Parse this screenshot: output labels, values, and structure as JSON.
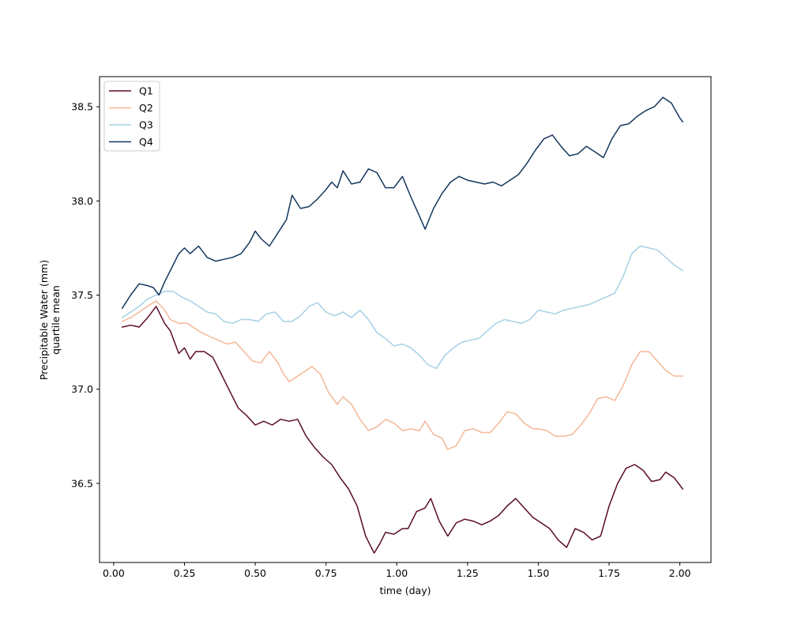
{
  "chart_data": {
    "type": "line",
    "title": "",
    "xlabel": "time (day)",
    "ylabel_lines": [
      "Precipitable Water (mm)",
      "quartile mean"
    ],
    "xlim": [
      -0.05,
      2.11
    ],
    "ylim": [
      36.08,
      38.66
    ],
    "xticks": [
      0.0,
      0.25,
      0.5,
      0.75,
      1.0,
      1.25,
      1.5,
      1.75,
      2.0
    ],
    "xtick_labels": [
      "0.00",
      "0.25",
      "0.50",
      "0.75",
      "1.00",
      "1.25",
      "1.50",
      "1.75",
      "2.00"
    ],
    "yticks": [
      36.5,
      37.0,
      37.5,
      38.0,
      38.5
    ],
    "ytick_labels": [
      "36.5",
      "37.0",
      "37.5",
      "38.0",
      "38.5"
    ],
    "grid": false,
    "legend_position": "top-left",
    "series": [
      {
        "name": "Q1",
        "color": "#5a0a2a",
        "points": [
          [
            0.03,
            37.33
          ],
          [
            0.06,
            37.34
          ],
          [
            0.09,
            37.33
          ],
          [
            0.12,
            37.38
          ],
          [
            0.15,
            37.44
          ],
          [
            0.18,
            37.35
          ],
          [
            0.2,
            37.31
          ],
          [
            0.23,
            37.19
          ],
          [
            0.25,
            37.22
          ],
          [
            0.27,
            37.16
          ],
          [
            0.29,
            37.2
          ],
          [
            0.32,
            37.2
          ],
          [
            0.35,
            37.17
          ],
          [
            0.38,
            37.08
          ],
          [
            0.41,
            36.99
          ],
          [
            0.44,
            36.9
          ],
          [
            0.47,
            36.86
          ],
          [
            0.5,
            36.81
          ],
          [
            0.53,
            36.83
          ],
          [
            0.56,
            36.81
          ],
          [
            0.59,
            36.84
          ],
          [
            0.62,
            36.83
          ],
          [
            0.65,
            36.84
          ],
          [
            0.68,
            36.75
          ],
          [
            0.71,
            36.69
          ],
          [
            0.74,
            36.64
          ],
          [
            0.77,
            36.6
          ],
          [
            0.8,
            36.53
          ],
          [
            0.83,
            36.47
          ],
          [
            0.86,
            36.38
          ],
          [
            0.89,
            36.22
          ],
          [
            0.92,
            36.13
          ],
          [
            0.94,
            36.18
          ],
          [
            0.96,
            36.24
          ],
          [
            0.99,
            36.23
          ],
          [
            1.02,
            36.26
          ],
          [
            1.04,
            36.26
          ],
          [
            1.07,
            36.35
          ],
          [
            1.1,
            36.37
          ],
          [
            1.12,
            36.42
          ],
          [
            1.15,
            36.3
          ],
          [
            1.18,
            36.22
          ],
          [
            1.21,
            36.29
          ],
          [
            1.24,
            36.31
          ],
          [
            1.27,
            36.3
          ],
          [
            1.3,
            36.28
          ],
          [
            1.33,
            36.3
          ],
          [
            1.36,
            36.33
          ],
          [
            1.39,
            36.38
          ],
          [
            1.42,
            36.42
          ],
          [
            1.45,
            36.37
          ],
          [
            1.48,
            36.32
          ],
          [
            1.51,
            36.29
          ],
          [
            1.54,
            36.26
          ],
          [
            1.57,
            36.2
          ],
          [
            1.6,
            36.16
          ],
          [
            1.63,
            36.26
          ],
          [
            1.66,
            36.24
          ],
          [
            1.69,
            36.2
          ],
          [
            1.72,
            36.22
          ],
          [
            1.75,
            36.38
          ],
          [
            1.78,
            36.5
          ],
          [
            1.81,
            36.58
          ],
          [
            1.84,
            36.6
          ],
          [
            1.87,
            36.57
          ],
          [
            1.9,
            36.51
          ],
          [
            1.93,
            36.52
          ],
          [
            1.95,
            36.56
          ],
          [
            1.98,
            36.53
          ],
          [
            2.01,
            36.47
          ]
        ]
      },
      {
        "name": "Q2",
        "color": "#f4b795",
        "points": [
          [
            0.03,
            37.36
          ],
          [
            0.06,
            37.38
          ],
          [
            0.09,
            37.41
          ],
          [
            0.12,
            37.44
          ],
          [
            0.15,
            37.47
          ],
          [
            0.18,
            37.42
          ],
          [
            0.2,
            37.37
          ],
          [
            0.23,
            37.35
          ],
          [
            0.26,
            37.35
          ],
          [
            0.28,
            37.33
          ],
          [
            0.31,
            37.3
          ],
          [
            0.34,
            37.28
          ],
          [
            0.37,
            37.26
          ],
          [
            0.4,
            37.24
          ],
          [
            0.43,
            37.25
          ],
          [
            0.46,
            37.2
          ],
          [
            0.49,
            37.15
          ],
          [
            0.52,
            37.14
          ],
          [
            0.55,
            37.2
          ],
          [
            0.58,
            37.14
          ],
          [
            0.6,
            37.08
          ],
          [
            0.62,
            37.04
          ],
          [
            0.65,
            37.07
          ],
          [
            0.68,
            37.1
          ],
          [
            0.7,
            37.12
          ],
          [
            0.73,
            37.08
          ],
          [
            0.76,
            36.98
          ],
          [
            0.79,
            36.92
          ],
          [
            0.81,
            36.96
          ],
          [
            0.84,
            36.92
          ],
          [
            0.87,
            36.84
          ],
          [
            0.9,
            36.78
          ],
          [
            0.93,
            36.8
          ],
          [
            0.96,
            36.84
          ],
          [
            0.99,
            36.82
          ],
          [
            1.02,
            36.78
          ],
          [
            1.05,
            36.79
          ],
          [
            1.08,
            36.78
          ],
          [
            1.1,
            36.83
          ],
          [
            1.13,
            36.76
          ],
          [
            1.16,
            36.74
          ],
          [
            1.18,
            36.68
          ],
          [
            1.21,
            36.7
          ],
          [
            1.24,
            36.78
          ],
          [
            1.27,
            36.79
          ],
          [
            1.3,
            36.77
          ],
          [
            1.33,
            36.77
          ],
          [
            1.36,
            36.82
          ],
          [
            1.39,
            36.88
          ],
          [
            1.42,
            36.87
          ],
          [
            1.45,
            36.82
          ],
          [
            1.48,
            36.79
          ],
          [
            1.5,
            36.79
          ],
          [
            1.53,
            36.78
          ],
          [
            1.56,
            36.75
          ],
          [
            1.59,
            36.75
          ],
          [
            1.62,
            36.76
          ],
          [
            1.65,
            36.81
          ],
          [
            1.68,
            36.87
          ],
          [
            1.71,
            36.95
          ],
          [
            1.74,
            36.96
          ],
          [
            1.77,
            36.94
          ],
          [
            1.8,
            37.02
          ],
          [
            1.83,
            37.13
          ],
          [
            1.86,
            37.2
          ],
          [
            1.89,
            37.2
          ],
          [
            1.92,
            37.15
          ],
          [
            1.95,
            37.1
          ],
          [
            1.98,
            37.07
          ],
          [
            2.01,
            37.07
          ]
        ]
      },
      {
        "name": "Q3",
        "color": "#a6d0e4",
        "points": [
          [
            0.03,
            37.38
          ],
          [
            0.06,
            37.41
          ],
          [
            0.09,
            37.44
          ],
          [
            0.12,
            37.48
          ],
          [
            0.15,
            37.5
          ],
          [
            0.18,
            37.52
          ],
          [
            0.21,
            37.52
          ],
          [
            0.24,
            37.49
          ],
          [
            0.27,
            37.47
          ],
          [
            0.3,
            37.44
          ],
          [
            0.33,
            37.41
          ],
          [
            0.36,
            37.4
          ],
          [
            0.39,
            37.36
          ],
          [
            0.42,
            37.35
          ],
          [
            0.45,
            37.37
          ],
          [
            0.48,
            37.37
          ],
          [
            0.51,
            37.36
          ],
          [
            0.54,
            37.4
          ],
          [
            0.57,
            37.41
          ],
          [
            0.6,
            37.36
          ],
          [
            0.63,
            37.36
          ],
          [
            0.66,
            37.39
          ],
          [
            0.69,
            37.44
          ],
          [
            0.72,
            37.46
          ],
          [
            0.75,
            37.41
          ],
          [
            0.78,
            37.39
          ],
          [
            0.81,
            37.41
          ],
          [
            0.84,
            37.38
          ],
          [
            0.87,
            37.42
          ],
          [
            0.9,
            37.37
          ],
          [
            0.93,
            37.3
          ],
          [
            0.96,
            37.27
          ],
          [
            0.99,
            37.23
          ],
          [
            1.02,
            37.24
          ],
          [
            1.05,
            37.22
          ],
          [
            1.08,
            37.18
          ],
          [
            1.11,
            37.13
          ],
          [
            1.14,
            37.11
          ],
          [
            1.17,
            37.18
          ],
          [
            1.2,
            37.22
          ],
          [
            1.23,
            37.25
          ],
          [
            1.26,
            37.26
          ],
          [
            1.29,
            37.27
          ],
          [
            1.32,
            37.31
          ],
          [
            1.35,
            37.35
          ],
          [
            1.38,
            37.37
          ],
          [
            1.41,
            37.36
          ],
          [
            1.44,
            37.35
          ],
          [
            1.47,
            37.37
          ],
          [
            1.5,
            37.42
          ],
          [
            1.53,
            37.41
          ],
          [
            1.56,
            37.4
          ],
          [
            1.59,
            37.42
          ],
          [
            1.62,
            37.43
          ],
          [
            1.65,
            37.44
          ],
          [
            1.68,
            37.45
          ],
          [
            1.71,
            37.47
          ],
          [
            1.74,
            37.49
          ],
          [
            1.77,
            37.51
          ],
          [
            1.8,
            37.6
          ],
          [
            1.83,
            37.72
          ],
          [
            1.86,
            37.76
          ],
          [
            1.89,
            37.75
          ],
          [
            1.92,
            37.74
          ],
          [
            1.95,
            37.7
          ],
          [
            1.98,
            37.66
          ],
          [
            2.01,
            37.63
          ]
        ]
      },
      {
        "name": "Q4",
        "color": "#14365e",
        "points": [
          [
            0.03,
            37.43
          ],
          [
            0.06,
            37.5
          ],
          [
            0.09,
            37.56
          ],
          [
            0.12,
            37.55
          ],
          [
            0.14,
            37.54
          ],
          [
            0.16,
            37.5
          ],
          [
            0.18,
            37.57
          ],
          [
            0.2,
            37.63
          ],
          [
            0.23,
            37.72
          ],
          [
            0.25,
            37.75
          ],
          [
            0.27,
            37.72
          ],
          [
            0.3,
            37.76
          ],
          [
            0.33,
            37.7
          ],
          [
            0.36,
            37.68
          ],
          [
            0.39,
            37.69
          ],
          [
            0.42,
            37.7
          ],
          [
            0.45,
            37.72
          ],
          [
            0.48,
            37.78
          ],
          [
            0.5,
            37.84
          ],
          [
            0.52,
            37.8
          ],
          [
            0.55,
            37.76
          ],
          [
            0.58,
            37.83
          ],
          [
            0.61,
            37.9
          ],
          [
            0.63,
            38.03
          ],
          [
            0.66,
            37.96
          ],
          [
            0.69,
            37.97
          ],
          [
            0.72,
            38.01
          ],
          [
            0.75,
            38.06
          ],
          [
            0.77,
            38.1
          ],
          [
            0.79,
            38.07
          ],
          [
            0.81,
            38.16
          ],
          [
            0.84,
            38.09
          ],
          [
            0.87,
            38.1
          ],
          [
            0.9,
            38.17
          ],
          [
            0.93,
            38.15
          ],
          [
            0.96,
            38.07
          ],
          [
            0.99,
            38.07
          ],
          [
            1.02,
            38.13
          ],
          [
            1.05,
            38.02
          ],
          [
            1.08,
            37.92
          ],
          [
            1.1,
            37.85
          ],
          [
            1.13,
            37.96
          ],
          [
            1.16,
            38.04
          ],
          [
            1.19,
            38.1
          ],
          [
            1.22,
            38.13
          ],
          [
            1.25,
            38.11
          ],
          [
            1.28,
            38.1
          ],
          [
            1.31,
            38.09
          ],
          [
            1.34,
            38.1
          ],
          [
            1.37,
            38.08
          ],
          [
            1.4,
            38.11
          ],
          [
            1.43,
            38.14
          ],
          [
            1.46,
            38.2
          ],
          [
            1.49,
            38.27
          ],
          [
            1.52,
            38.33
          ],
          [
            1.55,
            38.35
          ],
          [
            1.58,
            38.29
          ],
          [
            1.61,
            38.24
          ],
          [
            1.64,
            38.25
          ],
          [
            1.67,
            38.29
          ],
          [
            1.7,
            38.26
          ],
          [
            1.73,
            38.23
          ],
          [
            1.76,
            38.33
          ],
          [
            1.79,
            38.4
          ],
          [
            1.82,
            38.41
          ],
          [
            1.85,
            38.45
          ],
          [
            1.88,
            38.48
          ],
          [
            1.91,
            38.5
          ],
          [
            1.94,
            38.55
          ],
          [
            1.97,
            38.52
          ],
          [
            2.0,
            38.44
          ],
          [
            2.01,
            38.42
          ]
        ]
      }
    ]
  }
}
